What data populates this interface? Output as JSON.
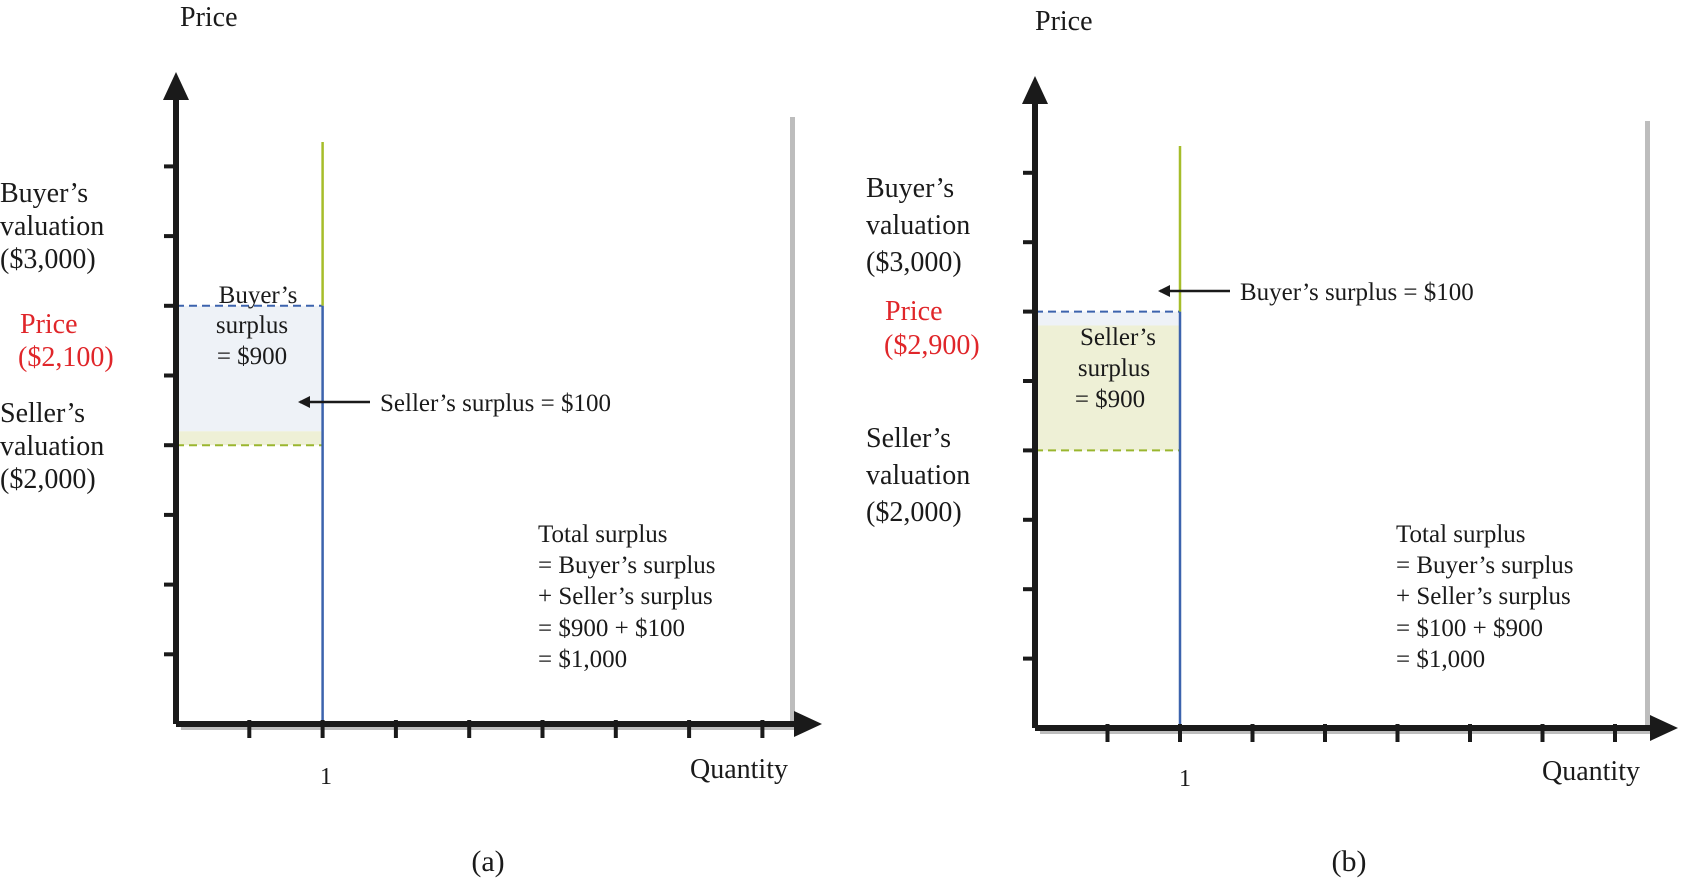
{
  "colors": {
    "axis": "#1a1a1a",
    "plot_bg": "#ffffff",
    "shadow": "#bdbdbd",
    "buyer_fill": "#eef2f7",
    "buyer_line": "#3c63ad",
    "seller_fill": "#eef0d6",
    "seller_line": "#9ab62f",
    "demand_line": "#3c63ad",
    "supply_line": "#a6bd2a",
    "price_text": "#e0262a"
  },
  "chart_data": [
    {
      "id": "a",
      "type": "area",
      "caption": "(a)",
      "ylabel": "Price",
      "xlabel": "Quantity",
      "x_tick_label": "1",
      "x_ticks": 8,
      "y_ticks": 8,
      "ylim": [
        0,
        4000
      ],
      "xlim": [
        0,
        6
      ],
      "quantity": 1,
      "buyer_valuation": 3000,
      "seller_valuation": 2000,
      "price": 2100,
      "labels": {
        "buyer": [
          "Buyer’s",
          "valuation",
          "($3,000)"
        ],
        "price": [
          "Price",
          "($2,100)"
        ],
        "seller": [
          "Seller’s",
          "valuation",
          "($2,000)"
        ]
      },
      "buyer_surplus": {
        "value": 900,
        "lines": [
          "Buyer’s",
          "surplus",
          "= $900"
        ]
      },
      "seller_surplus": {
        "value": 100,
        "text": "Seller’s surplus = $100"
      },
      "total_text": [
        "Total surplus",
        "= Buyer’s surplus",
        "+ Seller’s surplus",
        "= $900 + $100",
        "= $1,000"
      ]
    },
    {
      "id": "b",
      "type": "area",
      "caption": "(b)",
      "ylabel": "Price",
      "xlabel": "Quantity",
      "x_tick_label": "1",
      "x_ticks": 8,
      "y_ticks": 8,
      "ylim": [
        0,
        4000
      ],
      "xlim": [
        0,
        6
      ],
      "quantity": 1,
      "buyer_valuation": 3000,
      "seller_valuation": 2000,
      "price": 2900,
      "labels": {
        "buyer": [
          "Buyer’s",
          "valuation",
          "($3,000)"
        ],
        "price": [
          "Price",
          "($2,900)"
        ],
        "seller": [
          "Seller’s",
          "valuation",
          "($2,000)"
        ]
      },
      "buyer_surplus": {
        "value": 100,
        "text": "Buyer’s surplus = $100"
      },
      "seller_surplus": {
        "value": 900,
        "lines": [
          "Seller’s",
          "surplus",
          "= $900"
        ]
      },
      "total_text": [
        "Total surplus",
        "= Buyer’s surplus",
        "+ Seller’s surplus",
        "= $100 + $900",
        "= $1,000"
      ]
    }
  ]
}
